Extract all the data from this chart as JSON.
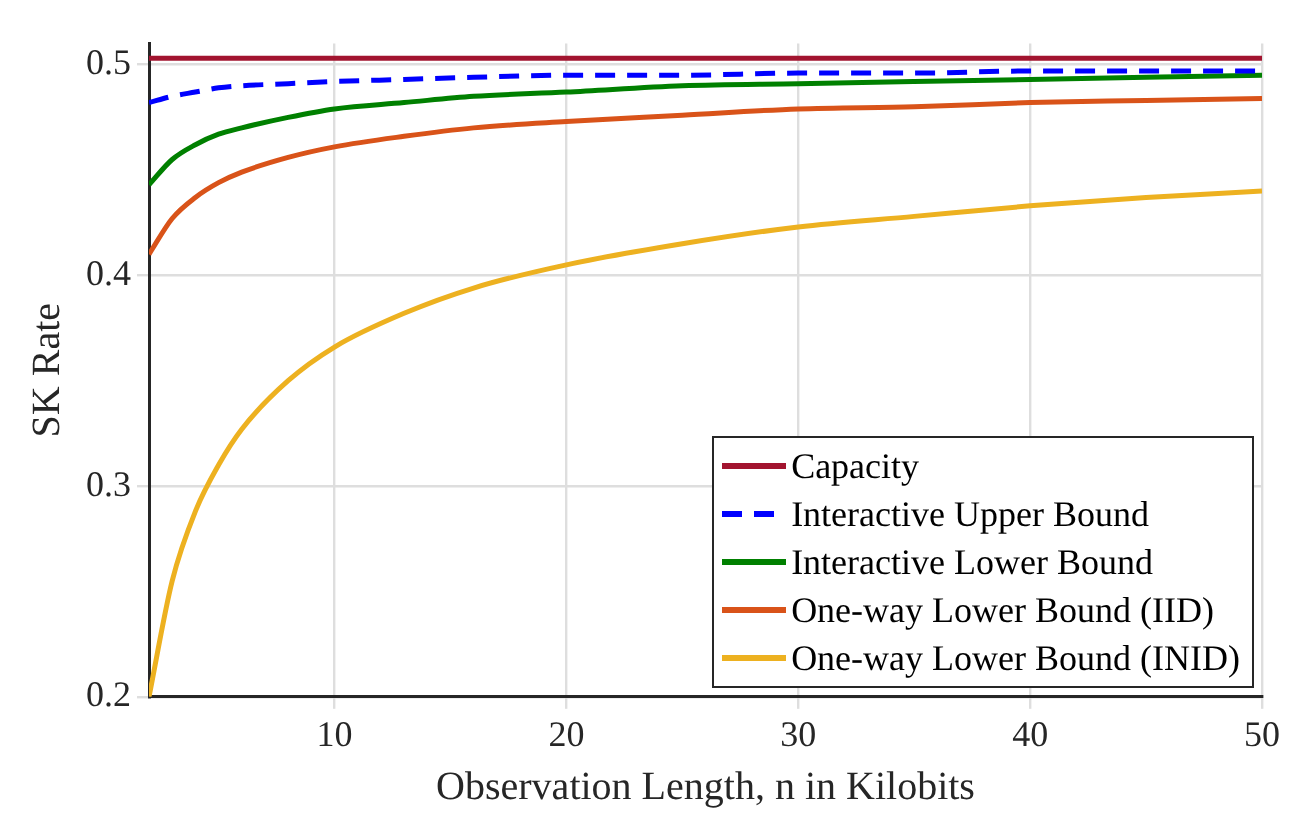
{
  "chart_data": {
    "type": "line",
    "xlabel": "Observation Length, n in Kilobits",
    "ylabel": "SK Rate",
    "xlim": [
      2,
      50
    ],
    "ylim": [
      0.2,
      0.51
    ],
    "xticks": [
      10,
      20,
      30,
      40,
      50
    ],
    "yticks": [
      0.2,
      0.3,
      0.4,
      0.5
    ],
    "grid": true,
    "legend": "bottom right",
    "marker": "none",
    "x": [
      2,
      3,
      4,
      5,
      6,
      8,
      10,
      13,
      16,
      20,
      25,
      30,
      35,
      40,
      45,
      50
    ],
    "series": [
      {
        "name": "Capacity",
        "color": "#a2142f",
        "x": [
          2,
          50
        ],
        "values": [
          0.503,
          0.503
        ]
      },
      {
        "name": "Interactive Upper Bound",
        "color": "#0000ff",
        "line_style": "dashed",
        "values": [
          0.482,
          0.485,
          0.487,
          0.489,
          0.49,
          0.491,
          0.492,
          0.493,
          0.494,
          0.495,
          0.495,
          0.496,
          0.496,
          0.497,
          0.497,
          0.497
        ]
      },
      {
        "name": "Interactive Lower Bound",
        "color": "#008000",
        "values": [
          0.443,
          0.455,
          0.462,
          0.467,
          0.47,
          0.475,
          0.479,
          0.482,
          0.485,
          0.487,
          0.49,
          0.491,
          0.492,
          0.493,
          0.494,
          0.495
        ]
      },
      {
        "name": "One-way Lower Bound (IID)",
        "color": "#d95319",
        "values": [
          0.41,
          0.427,
          0.437,
          0.444,
          0.449,
          0.456,
          0.461,
          0.466,
          0.47,
          0.473,
          0.476,
          0.479,
          0.48,
          0.482,
          0.483,
          0.484
        ]
      },
      {
        "name": "One-way Lower Bound (INID)",
        "color": "#edb120",
        "values": [
          0.2,
          0.255,
          0.288,
          0.31,
          0.327,
          0.35,
          0.366,
          0.382,
          0.394,
          0.405,
          0.415,
          0.423,
          0.428,
          0.433,
          0.437,
          0.44
        ]
      }
    ]
  }
}
